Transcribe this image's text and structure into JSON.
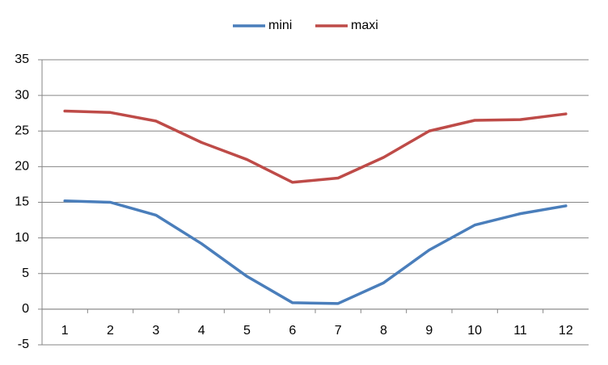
{
  "chart_data": {
    "type": "line",
    "categories": [
      1,
      2,
      3,
      4,
      5,
      6,
      7,
      8,
      9,
      10,
      11,
      12
    ],
    "series": [
      {
        "name": "mini",
        "color": "#4a7ebb",
        "values": [
          15.2,
          15.0,
          13.2,
          9.2,
          4.6,
          0.9,
          0.8,
          3.7,
          8.3,
          11.8,
          13.4,
          14.5
        ]
      },
      {
        "name": "maxi",
        "color": "#be4b48",
        "values": [
          27.8,
          27.6,
          26.4,
          23.4,
          21.0,
          17.8,
          18.4,
          21.3,
          25.0,
          26.5,
          26.6,
          27.4
        ]
      }
    ],
    "ylim": [
      -5,
      35
    ],
    "yticks": [
      -5,
      0,
      5,
      10,
      15,
      20,
      25,
      30,
      35
    ],
    "grid": true,
    "legend": "top"
  }
}
